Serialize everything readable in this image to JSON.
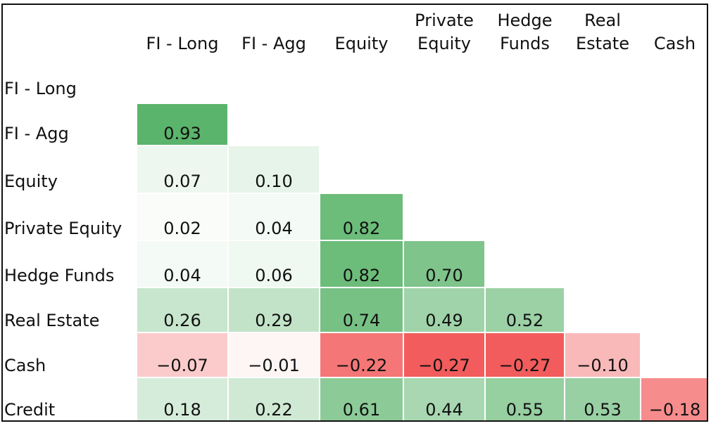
{
  "chart_data": {
    "type": "heatmap",
    "columns": [
      [
        "FI - Long"
      ],
      [
        "FI - Agg"
      ],
      [
        "Equity"
      ],
      [
        "Private",
        "Equity"
      ],
      [
        "Hedge",
        "Funds"
      ],
      [
        "Real",
        "Estate"
      ],
      [
        "Cash"
      ]
    ],
    "rows": [
      "FI - Long",
      "FI - Agg",
      "Equity",
      "Private Equity",
      "Hedge Funds",
      "Real Estate",
      "Cash",
      "Credit"
    ],
    "values": [
      [],
      [
        "0.93"
      ],
      [
        "0.07",
        "0.10"
      ],
      [
        "0.02",
        "0.04",
        "0.82"
      ],
      [
        "0.04",
        "0.06",
        "0.82",
        "0.70"
      ],
      [
        "0.26",
        "0.29",
        "0.74",
        "0.49",
        "0.52"
      ],
      [
        "-0.07",
        "-0.01",
        "-0.22",
        "-0.27",
        "-0.27",
        "-0.10"
      ],
      [
        "0.18",
        "0.22",
        "0.61",
        "0.44",
        "0.55",
        "0.53",
        "-0.18"
      ]
    ],
    "color_positive": "#5bb46b",
    "color_negative": "#f25c5c",
    "color_neutral": "#ffffff"
  }
}
